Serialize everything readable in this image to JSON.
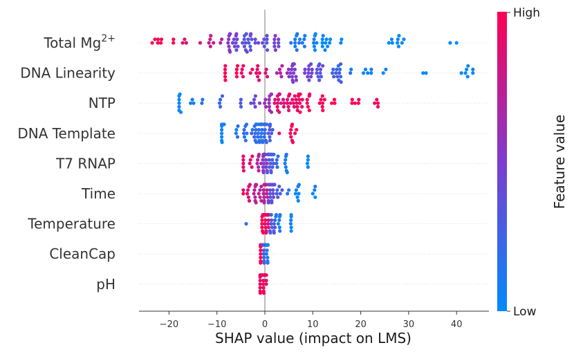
{
  "chart_data": {
    "type": "scatter",
    "subtype": "shap-beeswarm",
    "xlabel": "SHAP value (impact on LMS)",
    "xlim": [
      -26,
      47
    ],
    "xticks": [
      -20,
      -10,
      0,
      10,
      20,
      30,
      40
    ],
    "features": [
      {
        "name": "Total Mg",
        "superscript": "2+",
        "high_range": [
          -23.5,
          -2
        ],
        "low_range": [
          5,
          40
        ],
        "median_high": -5,
        "median_low": 11,
        "spread_points": [
          [
            -23.5,
            1.0
          ],
          [
            -22.3,
            1.0
          ],
          [
            -19.1,
            1.0
          ],
          [
            -16.4,
            0.9
          ],
          [
            -13.5,
            0.8
          ],
          [
            -11.3,
            0.75
          ],
          [
            -9,
            0.7
          ],
          [
            -7.5,
            0.55
          ],
          [
            -5.8,
            0.45
          ],
          [
            -4,
            0.35
          ],
          [
            -2,
            0.4
          ],
          [
            0.5,
            0.35
          ],
          [
            2,
            0.5
          ],
          [
            6.3,
            0.1
          ],
          [
            8.2,
            0.1
          ],
          [
            10.3,
            0.05
          ],
          [
            12,
            0.0
          ],
          [
            13.5,
            0.0
          ],
          [
            16,
            0.0
          ],
          [
            26.6,
            0.0
          ],
          [
            28,
            0.0
          ],
          [
            40,
            0.0
          ]
        ],
        "count": 90
      },
      {
        "name": "DNA Linearity",
        "superscript": "",
        "high_range": [
          -8,
          6
        ],
        "low_range": [
          10,
          43.5
        ],
        "spread_points": [
          [
            -8.3,
            1.0
          ],
          [
            -5.7,
            1.0
          ],
          [
            -4.5,
            0.95
          ],
          [
            -3,
            0.95
          ],
          [
            -1.5,
            0.9
          ],
          [
            0.5,
            0.85
          ],
          [
            3.6,
            0.7
          ],
          [
            6,
            0.5
          ],
          [
            9.2,
            0.45
          ],
          [
            11.2,
            0.35
          ],
          [
            15,
            0.25
          ],
          [
            18,
            0.1
          ],
          [
            21,
            0.05
          ],
          [
            24.7,
            0.0
          ],
          [
            33,
            0.0
          ],
          [
            41,
            0.0
          ],
          [
            43.4,
            0.0
          ]
        ],
        "count": 80
      },
      {
        "name": "NTP",
        "superscript": "",
        "low_range": [
          -18,
          -3
        ],
        "high_range": [
          2,
          24
        ],
        "spread_points": [
          [
            -17.9,
            0.0
          ],
          [
            -15.5,
            0.05
          ],
          [
            -13,
            0.15
          ],
          [
            -9.3,
            0.2
          ],
          [
            -5,
            0.3
          ],
          [
            -2,
            0.45
          ],
          [
            1,
            0.6
          ],
          [
            3,
            0.85
          ],
          [
            5,
            0.9
          ],
          [
            7,
            0.95
          ],
          [
            9,
            1.0
          ],
          [
            12,
            1.0
          ],
          [
            14.5,
            1.0
          ],
          [
            18.8,
            1.0
          ],
          [
            23.6,
            1.0
          ]
        ],
        "count": 85
      },
      {
        "name": "DNA Template",
        "superscript": "",
        "low_range": [
          -9,
          2
        ],
        "high_range": [
          3,
          7
        ],
        "spread_points": [
          [
            -9,
            0.05
          ],
          [
            -6,
            0.1
          ],
          [
            -4,
            0.15
          ],
          [
            -2,
            0.2
          ],
          [
            -1,
            0.15
          ],
          [
            0,
            0.2
          ],
          [
            1,
            0.3
          ],
          [
            3,
            0.9
          ],
          [
            5.7,
            0.95
          ],
          [
            6.6,
            1.0
          ]
        ],
        "count": 70
      },
      {
        "name": "T7 RNAP",
        "superscript": "",
        "high_range": [
          -4.5,
          -1
        ],
        "low_range": [
          1,
          9
        ],
        "spread_points": [
          [
            -4.5,
            0.9
          ],
          [
            -3,
            0.85
          ],
          [
            -1.5,
            0.7
          ],
          [
            0,
            0.5
          ],
          [
            1,
            0.3
          ],
          [
            2.5,
            0.2
          ],
          [
            4.5,
            0.1
          ],
          [
            9,
            0.0
          ]
        ],
        "count": 65
      },
      {
        "name": "Time",
        "superscript": "",
        "high_range": [
          -4.5,
          0.5
        ],
        "low_range": [
          1,
          10.5
        ],
        "spread_points": [
          [
            -4.5,
            0.95
          ],
          [
            -3.4,
            0.85
          ],
          [
            -2,
            0.75
          ],
          [
            -1,
            0.7
          ],
          [
            0,
            0.75
          ],
          [
            1.5,
            0.4
          ],
          [
            3,
            0.3
          ],
          [
            5,
            0.1
          ],
          [
            6.8,
            0.05
          ],
          [
            10.5,
            0.0
          ]
        ],
        "count": 65
      },
      {
        "name": "Temperature",
        "superscript": "",
        "high_range": [
          -0.5,
          0.5
        ],
        "low_range": [
          1,
          5.5
        ],
        "spread_points": [
          [
            -3.9,
            0.15
          ],
          [
            -0.5,
            1.0
          ],
          [
            0,
            0.95
          ],
          [
            0.4,
            0.9
          ],
          [
            1.5,
            0.3
          ],
          [
            3,
            0.1
          ],
          [
            5.5,
            0.05
          ]
        ],
        "count": 55
      },
      {
        "name": "CleanCap",
        "superscript": "",
        "high_range": [
          -1,
          0
        ],
        "low_range": [
          0,
          1
        ],
        "spread_points": [
          [
            -0.9,
            0.95
          ],
          [
            0,
            0.3
          ],
          [
            0.6,
            0.1
          ]
        ],
        "count": 40
      },
      {
        "name": "pH",
        "superscript": "",
        "high_range": [
          -1,
          0.5
        ],
        "low_range": [
          0,
          0
        ],
        "spread_points": [
          [
            -1,
            0.95
          ],
          [
            -0.3,
            0.95
          ],
          [
            0.3,
            0.9
          ]
        ],
        "count": 40
      }
    ],
    "colorbar": {
      "title": "Feature value",
      "high_label": "High",
      "low_label": "Low",
      "low_color": "#008afb",
      "mid_color": "#7e3ccf",
      "high_color": "#ff0052"
    }
  }
}
